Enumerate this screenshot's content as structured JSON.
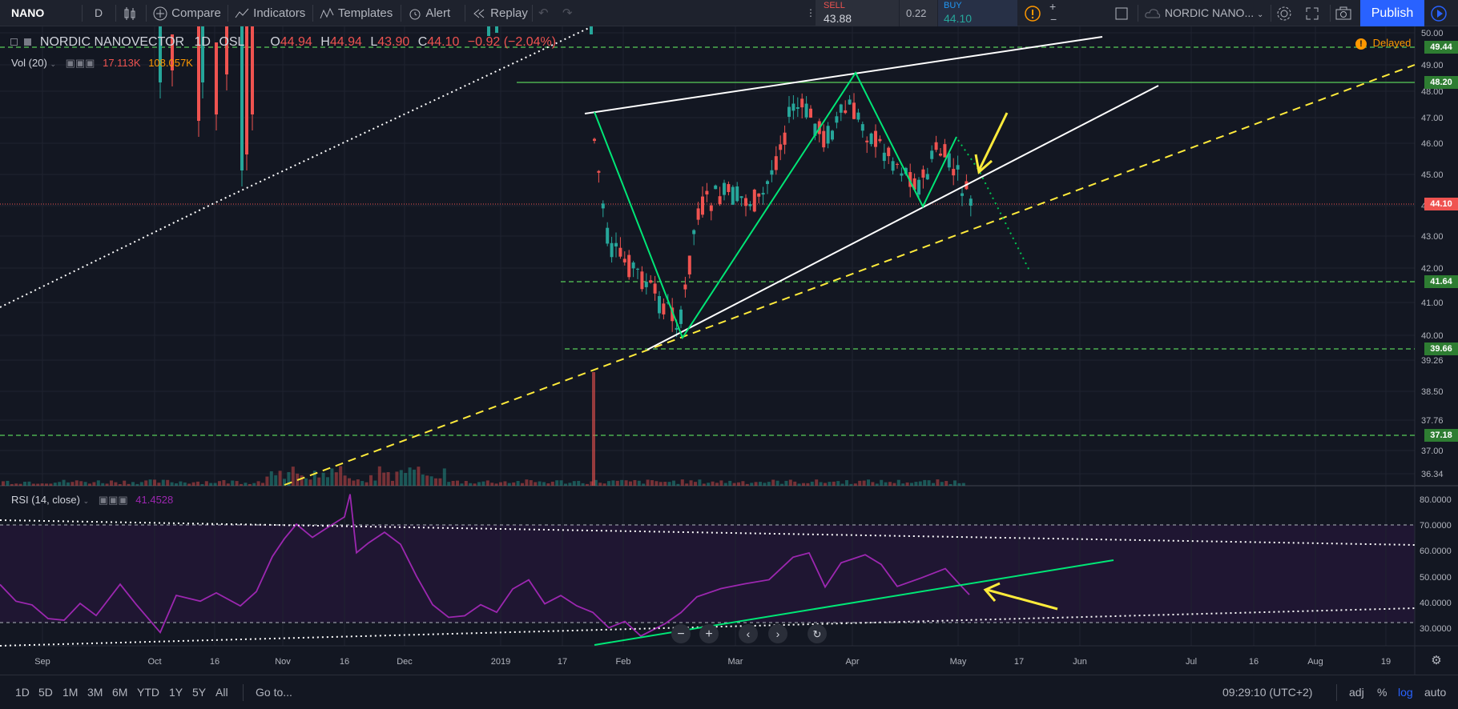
{
  "toolbar": {
    "symbol": "NANO",
    "interval": "D",
    "compare": "Compare",
    "indicators": "Indicators",
    "templates": "Templates",
    "alert": "Alert",
    "replay": "Replay",
    "sell_label": "SELL",
    "sell_price": "43.88",
    "spread": "0.22",
    "buy_label": "BUY",
    "buy_price": "44.10",
    "symbol_search": "NORDIC NANO...",
    "publish": "Publish"
  },
  "legend": {
    "title": "NORDIC NANOVECTOR",
    "interval": "1D",
    "exchange": "OSL",
    "open_label": "O",
    "open": "44.94",
    "high_label": "H",
    "high": "44.94",
    "low_label": "L",
    "low": "43.90",
    "close_label": "C",
    "close": "44.10",
    "change": "−0.92 (−2.04%)",
    "delayed": "Delayed",
    "vol_label": "Vol (20)",
    "vol_value": "17.113K",
    "vol_ma": "108.057K",
    "rsi_label": "RSI (14, close)",
    "rsi_value": "41.4528"
  },
  "price_axis": [
    "50.00",
    "49.00",
    "48.00",
    "47.00",
    "46.00",
    "45.00",
    "44.00",
    "43.00",
    "42.00",
    "41.00",
    "40.00",
    "39.26",
    "38.50",
    "37.76",
    "37.00",
    "36.34"
  ],
  "price_tags": [
    {
      "label": "49.44",
      "color": "#2e7d32"
    },
    {
      "label": "48.20",
      "color": "#2e7d32"
    },
    {
      "label": "44.10",
      "color": "#ef5350"
    },
    {
      "label": "41.64",
      "color": "#2e7d32"
    },
    {
      "label": "39.66",
      "color": "#2e7d32"
    },
    {
      "label": "37.18",
      "color": "#2e7d32"
    }
  ],
  "rsi_axis": [
    "80.0000",
    "70.0000",
    "60.0000",
    "50.0000",
    "40.0000",
    "30.0000"
  ],
  "time_axis": [
    "Sep",
    "Oct",
    "16",
    "Nov",
    "16",
    "Dec",
    "2019",
    "17",
    "Feb",
    "Mar",
    "Apr",
    "May",
    "17",
    "Jun",
    "Jul",
    "16",
    "Aug",
    "19"
  ],
  "chart_data": {
    "type": "candlestick",
    "symbol": "NORDIC NANOVECTOR",
    "interval": "1D",
    "last_close": 44.1,
    "levels": [
      49.44,
      48.2,
      41.64,
      39.66,
      37.18
    ],
    "rsi_last": 41.4528,
    "rsi_bands": [
      70,
      30
    ]
  },
  "bottom": {
    "ranges": [
      "1D",
      "5D",
      "1M",
      "3M",
      "6M",
      "YTD",
      "1Y",
      "5Y",
      "All"
    ],
    "goto": "Go to...",
    "clock": "09:29:10 (UTC+2)",
    "adj": "adj",
    "pct": "%",
    "log": "log",
    "auto": "auto"
  },
  "colors": {
    "background": "#131722",
    "up": "#26a69a",
    "down": "#ef5350",
    "green_line": "#00e676",
    "yellow": "#ffeb3b",
    "rsi": "#9c27b0"
  }
}
